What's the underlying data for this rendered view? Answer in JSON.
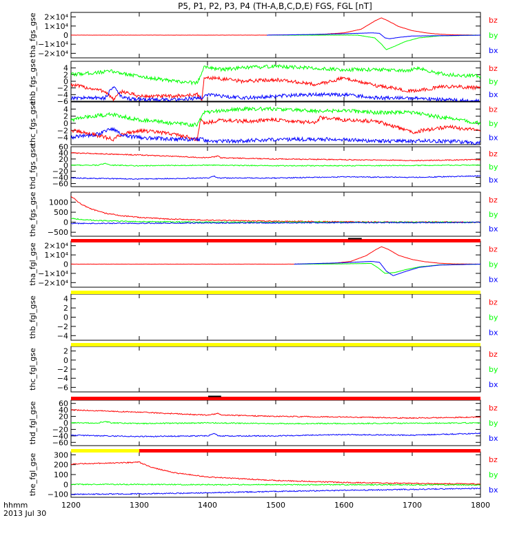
{
  "title": "P5, P1, P2, P3, P4 (TH-A,B,C,D,E) FGS, FGL [nT]",
  "time_axis": {
    "ticks": [
      "1200",
      "1300",
      "1400",
      "1500",
      "1600",
      "1700",
      "1800"
    ],
    "unit_label": "hhmm",
    "date_label": "2013 Jul 30",
    "range": [
      1200,
      1800
    ]
  },
  "colors": {
    "bz": "#ff0000",
    "by": "#00ff00",
    "bx": "#0000ff",
    "bar_red": "#ff0000",
    "bar_yellow": "#ffff00",
    "bar_black": "#000000"
  },
  "chart_data": [
    {
      "type": "line",
      "ylabel": "tha_fgs_gse",
      "ylim": [
        -25000,
        25000
      ],
      "ytick_labels": [
        "2×10⁴",
        "1×10⁴",
        "0",
        "−1×10⁴",
        "−2×10⁴"
      ],
      "ytick_values": [
        20000,
        10000,
        0,
        -10000,
        -20000
      ],
      "legend": [
        "bz",
        "by",
        "bx"
      ],
      "data_start": 1487,
      "data_end": 1800,
      "series": [
        {
          "name": "bz",
          "color": "#ff0000",
          "x": [
            1200,
            1480,
            1560,
            1600,
            1625,
            1645,
            1655,
            1665,
            1680,
            1700,
            1720,
            1740,
            1760,
            1800
          ],
          "values": [
            0,
            0,
            500,
            2500,
            6500,
            15500,
            19000,
            15500,
            9500,
            5000,
            2500,
            1000,
            300,
            0
          ]
        },
        {
          "name": "by",
          "color": "#00ff00",
          "x": [
            1487,
            1620,
            1645,
            1655,
            1662,
            1675,
            1690,
            1710,
            1740,
            1800
          ],
          "values": [
            0,
            0,
            -3000,
            -10000,
            -16000,
            -12000,
            -7000,
            -3000,
            -800,
            0
          ]
        },
        {
          "name": "bx",
          "color": "#0000ff",
          "x": [
            1487,
            1560,
            1600,
            1640,
            1652,
            1660,
            1667,
            1680,
            1700,
            1800
          ],
          "values": [
            0,
            800,
            1500,
            2500,
            2000,
            -3000,
            -4000,
            -2500,
            -1000,
            0
          ]
        }
      ]
    },
    {
      "type": "line",
      "ylabel": "thb_fgs_gse",
      "ylim": [
        -6,
        6
      ],
      "ytick_labels": [
        "4",
        "2",
        "0",
        "−2",
        "−4",
        "−6"
      ],
      "ytick_values": [
        4,
        2,
        0,
        -2,
        -4,
        -6
      ],
      "legend": [
        "bz",
        "by",
        "bx"
      ],
      "series": [
        {
          "name": "bz",
          "color": "#ff0000",
          "x": [
            1200,
            1250,
            1262,
            1275,
            1300,
            1350,
            1385,
            1392,
            1395,
            1410,
            1450,
            1500,
            1560,
            1600,
            1640,
            1700,
            1750,
            1800
          ],
          "values": [
            -1,
            -3,
            -5.5,
            -3,
            -4.5,
            -4.5,
            -4,
            -5.5,
            1,
            1,
            0,
            0.5,
            -1,
            1,
            -1,
            -3,
            -1.5,
            -2
          ]
        },
        {
          "name": "by",
          "color": "#00ff00",
          "x": [
            1200,
            1230,
            1260,
            1300,
            1350,
            1385,
            1395,
            1420,
            1450,
            1500,
            1550,
            1600,
            1650,
            1695,
            1705,
            1750,
            1800
          ],
          "values": [
            2,
            2.5,
            3,
            1.5,
            0,
            -0.5,
            4.5,
            3.5,
            4,
            4.5,
            4,
            3.5,
            3.5,
            3,
            4,
            2,
            1.5
          ]
        },
        {
          "name": "bx",
          "color": "#0000ff",
          "x": [
            1200,
            1250,
            1262,
            1275,
            1300,
            1350,
            1392,
            1400,
            1450,
            1500,
            1550,
            1600,
            1650,
            1700,
            1750,
            1800
          ],
          "values": [
            -5,
            -5,
            -1.5,
            -5,
            -5.5,
            -5.5,
            -5,
            -4,
            -5,
            -4.5,
            -4,
            -4,
            -5,
            -5,
            -5.5,
            -6
          ]
        }
      ]
    },
    {
      "type": "line",
      "ylabel": "thc_fgs_gse",
      "ylim": [
        -6,
        6
      ],
      "ytick_labels": [
        "4",
        "2",
        "0",
        "−2",
        "−4"
      ],
      "ytick_values": [
        4,
        2,
        0,
        -2,
        -4
      ],
      "legend": [
        "bz",
        "by",
        "bx"
      ],
      "series": [
        {
          "name": "bz",
          "color": "#ff0000",
          "x": [
            1200,
            1230,
            1262,
            1275,
            1300,
            1350,
            1385,
            1390,
            1395,
            1420,
            1450,
            1500,
            1560,
            1565,
            1600,
            1650,
            1700,
            1750,
            1800
          ],
          "values": [
            -2,
            -3,
            -4.5,
            -3,
            -2,
            -3,
            -4.5,
            1,
            0,
            1,
            0.5,
            1,
            0,
            1.5,
            1,
            0.5,
            -2.5,
            -1,
            -2
          ]
        },
        {
          "name": "by",
          "color": "#00ff00",
          "x": [
            1200,
            1230,
            1260,
            1300,
            1350,
            1385,
            1395,
            1420,
            1450,
            1500,
            1550,
            1600,
            1650,
            1700,
            1750,
            1800
          ],
          "values": [
            1,
            2,
            2.5,
            1,
            0,
            -0.5,
            3,
            3.5,
            4,
            4,
            3.5,
            3.5,
            3,
            3,
            1.5,
            0
          ]
        },
        {
          "name": "bx",
          "color": "#0000ff",
          "x": [
            1200,
            1240,
            1262,
            1275,
            1300,
            1350,
            1392,
            1400,
            1450,
            1500,
            1550,
            1600,
            1650,
            1700,
            1750,
            1800
          ],
          "values": [
            -4,
            -3,
            -1.5,
            -3.5,
            -4,
            -4.5,
            -4.5,
            -5,
            -5,
            -4.5,
            -4.5,
            -4.5,
            -5,
            -5,
            -5,
            -5.5
          ]
        }
      ]
    },
    {
      "type": "line",
      "ylabel": "thd_fgs_gse",
      "ylim": [
        -70,
        60
      ],
      "ytick_labels": [
        "60",
        "40",
        "20",
        "0",
        "−20",
        "−40",
        "−60"
      ],
      "ytick_values": [
        60,
        40,
        20,
        0,
        -20,
        -40,
        -60
      ],
      "legend": [
        "bz",
        "by",
        "bx"
      ],
      "series": [
        {
          "name": "bz",
          "color": "#ff0000",
          "x": [
            1200,
            1300,
            1400,
            1410,
            1415,
            1420,
            1500,
            1600,
            1700,
            1800
          ],
          "values": [
            40,
            33,
            24,
            27,
            30,
            24,
            20,
            18,
            15,
            18
          ]
        },
        {
          "name": "by",
          "color": "#00ff00",
          "x": [
            1200,
            1240,
            1250,
            1260,
            1300,
            1400,
            1500,
            1600,
            1700,
            1800
          ],
          "values": [
            0,
            0,
            5,
            0,
            -2,
            0,
            -2,
            -2,
            -1,
            0
          ]
        },
        {
          "name": "bx",
          "color": "#0000ff",
          "x": [
            1200,
            1300,
            1400,
            1410,
            1415,
            1420,
            1500,
            1600,
            1700,
            1800
          ],
          "values": [
            -42,
            -45,
            -42,
            -35,
            -42,
            -42,
            -42,
            -38,
            -40,
            -35
          ]
        }
      ]
    },
    {
      "type": "line",
      "ylabel": "the_fgs_gse",
      "ylim": [
        -700,
        1500
      ],
      "ytick_labels": [
        "1000",
        "500",
        "0",
        "−500"
      ],
      "ytick_values": [
        1000,
        500,
        0,
        -500
      ],
      "legend": [
        "bz",
        "by",
        "bx"
      ],
      "series": [
        {
          "name": "bz",
          "color": "#ff0000",
          "x": [
            1200,
            1215,
            1230,
            1250,
            1275,
            1300,
            1350,
            1400,
            1500,
            1600,
            1700,
            1800
          ],
          "values": [
            1300,
            900,
            650,
            450,
            320,
            240,
            150,
            100,
            50,
            20,
            10,
            0
          ]
        },
        {
          "name": "by",
          "color": "#00ff00",
          "x": [
            1200,
            1220,
            1250,
            1300,
            1350,
            1400,
            1500,
            1600,
            1700,
            1800
          ],
          "values": [
            200,
            120,
            70,
            30,
            15,
            5,
            0,
            0,
            0,
            0
          ]
        },
        {
          "name": "bx",
          "color": "#0000ff",
          "x": [
            1200,
            1300,
            1400,
            1500,
            1600,
            1700,
            1800
          ],
          "values": [
            -60,
            -50,
            -40,
            -30,
            -20,
            -20,
            -10
          ]
        }
      ]
    },
    {
      "type": "line",
      "ylabel": "tha_fgl_gse",
      "ylim": [
        -25000,
        25000
      ],
      "ytick_labels": [
        "2×10⁴",
        "1×10⁴",
        "0",
        "−1×10⁴",
        "−2×10⁴"
      ],
      "ytick_values": [
        20000,
        10000,
        0,
        -10000,
        -20000
      ],
      "legend": [
        "bz",
        "by",
        "bx"
      ],
      "data_start": 1527,
      "data_end": 1800,
      "series": [
        {
          "name": "bz",
          "color": "#ff0000",
          "x": [
            1200,
            1520,
            1580,
            1610,
            1632,
            1645,
            1655,
            1665,
            1680,
            1700,
            1720,
            1740,
            1760,
            1800
          ],
          "values": [
            0,
            0,
            500,
            3000,
            9000,
            15000,
            19000,
            16000,
            9500,
            5000,
            2500,
            1000,
            300,
            0
          ]
        },
        {
          "name": "by",
          "color": "#00ff00",
          "x": [
            1527,
            1600,
            1640,
            1650,
            1660,
            1675,
            1690,
            1710,
            1740,
            1800
          ],
          "values": [
            0,
            300,
            800,
            -4000,
            -10000,
            -9000,
            -6000,
            -3000,
            -800,
            0
          ]
        },
        {
          "name": "bx",
          "color": "#0000ff",
          "x": [
            1527,
            1600,
            1640,
            1652,
            1662,
            1672,
            1690,
            1710,
            1740,
            1800
          ],
          "values": [
            0,
            1500,
            3000,
            2000,
            -7500,
            -12500,
            -8000,
            -3500,
            -1000,
            0
          ]
        }
      ]
    },
    {
      "type": "line",
      "ylabel": "thb_fgl_gse",
      "ylim": [
        -5,
        5
      ],
      "ytick_labels": [
        "4",
        "2",
        "0",
        "−2",
        "−4"
      ],
      "ytick_values": [
        4,
        2,
        0,
        -2,
        -4
      ],
      "legend": [
        "bz",
        "by",
        "bx"
      ],
      "series": []
    },
    {
      "type": "line",
      "ylabel": "thc_fgl_gse",
      "ylim": [
        -7,
        3
      ],
      "ytick_labels": [
        "2",
        "0",
        "−2",
        "−4",
        "−6"
      ],
      "ytick_values": [
        2,
        0,
        -2,
        -4,
        -6
      ],
      "legend": [
        "bz",
        "by",
        "bx"
      ],
      "series": []
    },
    {
      "type": "line",
      "ylabel": "thd_fgl_gse",
      "ylim": [
        -70,
        70
      ],
      "ytick_labels": [
        "60",
        "40",
        "20",
        "0",
        "−20",
        "−40",
        "−60"
      ],
      "ytick_values": [
        60,
        40,
        20,
        0,
        -20,
        -40,
        -60
      ],
      "legend": [
        "bz",
        "by",
        "bx"
      ],
      "series": [
        {
          "name": "bz",
          "color": "#ff0000",
          "x": [
            1200,
            1300,
            1400,
            1410,
            1415,
            1420,
            1500,
            1600,
            1700,
            1800
          ],
          "values": [
            40,
            33,
            24,
            27,
            30,
            24,
            20,
            18,
            15,
            18
          ]
        },
        {
          "name": "by",
          "color": "#00ff00",
          "x": [
            1200,
            1240,
            1250,
            1260,
            1300,
            1400,
            1500,
            1600,
            1700,
            1800
          ],
          "values": [
            0,
            0,
            5,
            0,
            -2,
            0,
            -2,
            -2,
            -1,
            0
          ]
        },
        {
          "name": "bx",
          "color": "#0000ff",
          "x": [
            1200,
            1300,
            1400,
            1410,
            1415,
            1420,
            1500,
            1600,
            1700,
            1800
          ],
          "values": [
            -38,
            -42,
            -40,
            -32,
            -40,
            -40,
            -40,
            -36,
            -38,
            -32
          ]
        }
      ]
    },
    {
      "type": "line",
      "ylabel": "the_fgl_gse",
      "ylim": [
        -130,
        330
      ],
      "ytick_labels": [
        "300",
        "200",
        "100",
        "0",
        "−100"
      ],
      "ytick_values": [
        300,
        200,
        100,
        0,
        -100
      ],
      "legend": [
        "bz",
        "by",
        "bx"
      ],
      "series": [
        {
          "name": "bz",
          "color": "#ff0000",
          "x": [
            1200,
            1210,
            1250,
            1300,
            1320,
            1350,
            1400,
            1500,
            1600,
            1700,
            1800
          ],
          "values": [
            205,
            210,
            215,
            225,
            170,
            120,
            75,
            40,
            20,
            10,
            5
          ]
        },
        {
          "name": "by",
          "color": "#00ff00",
          "x": [
            1200,
            1300,
            1400,
            1500,
            1600,
            1700,
            1800
          ],
          "values": [
            0,
            0,
            -2,
            -2,
            -3,
            -4,
            -5
          ]
        },
        {
          "name": "bx",
          "color": "#0000ff",
          "x": [
            1200,
            1300,
            1400,
            1500,
            1600,
            1700,
            1800
          ],
          "values": [
            -100,
            -95,
            -85,
            -70,
            -60,
            -50,
            -40
          ]
        }
      ]
    }
  ],
  "mode_bars": [
    {
      "after_panel": 4,
      "segments": [
        {
          "start": 1200,
          "end": 1800,
          "color": "red"
        }
      ],
      "marks": [
        {
          "start": 1606,
          "end": 1626,
          "color": "black"
        }
      ]
    },
    {
      "after_panel": 5,
      "segments": [
        {
          "start": 1200,
          "end": 1800,
          "color": "yellow"
        }
      ]
    },
    {
      "after_panel": 6,
      "segments": [
        {
          "start": 1200,
          "end": 1800,
          "color": "yellow"
        }
      ]
    },
    {
      "after_panel": 7,
      "segments": [
        {
          "start": 1200,
          "end": 1800,
          "color": "red"
        }
      ],
      "marks": [
        {
          "start": 1401,
          "end": 1420,
          "color": "black"
        }
      ]
    },
    {
      "after_panel": 8,
      "segments": [
        {
          "start": 1200,
          "end": 1300,
          "color": "yellow"
        },
        {
          "start": 1300,
          "end": 1800,
          "color": "red"
        }
      ]
    }
  ]
}
